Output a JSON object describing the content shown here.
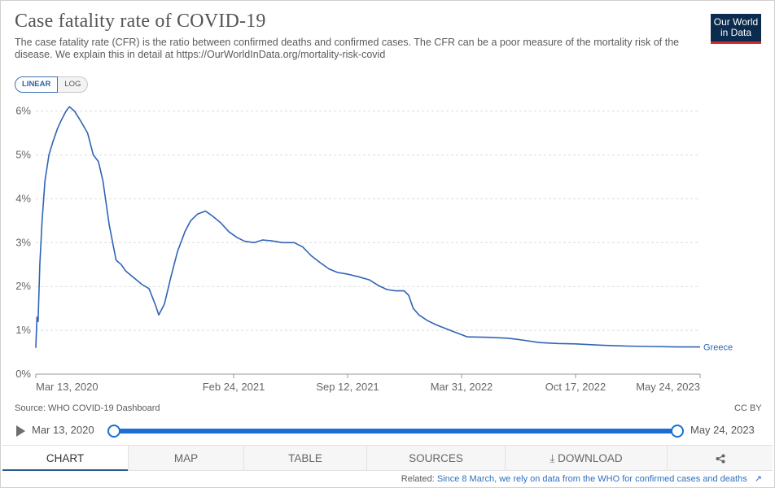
{
  "title": "Case fatality rate of COVID-19",
  "subtitle": "The case fatality rate (CFR) is the ratio between confirmed deaths and confirmed cases. The CFR can be a poor measure of the mortality risk of the disease. We explain this in detail at https://OurWorldInData.org/mortality-risk-covid",
  "logo": {
    "line1": "Our World",
    "line2": "in Data"
  },
  "scale_toggle": {
    "linear": "LINEAR",
    "log": "LOG",
    "selected": "LINEAR"
  },
  "source": "Source: WHO COVID-19 Dashboard",
  "license": "CC BY",
  "timeline": {
    "start": "Mar 13, 2020",
    "end": "May 24, 2023"
  },
  "tabs": [
    "CHART",
    "MAP",
    "TABLE",
    "SOURCES",
    "DOWNLOAD",
    ""
  ],
  "active_tab": "CHART",
  "related": {
    "prefix": "Related:",
    "link": "Since 8 March, we rely on data from the WHO for confirmed cases and deaths"
  },
  "colors": {
    "series": "#2f64b5",
    "timeline": "#1a6fd1",
    "logo_bg": "#0b2c4f",
    "logo_accent": "#d42b2b"
  },
  "icons": {
    "download": "download-icon",
    "share": "share-icon",
    "play": "play-icon",
    "external": "external-link-icon"
  },
  "chart_data": {
    "type": "line",
    "title": "Case fatality rate of COVID-19",
    "xlabel": "",
    "ylabel": "",
    "x_ticks": [
      "Mar 13, 2020",
      "Feb 24, 2021",
      "Sep 12, 2021",
      "Mar 31, 2022",
      "Oct 17, 2022",
      "May 24, 2023"
    ],
    "y_ticks": [
      "0%",
      "1%",
      "2%",
      "3%",
      "4%",
      "5%",
      "6%"
    ],
    "ylim": [
      0,
      6.2
    ],
    "xlim": [
      "2020-03-13",
      "2023-05-24"
    ],
    "grid": true,
    "series": [
      {
        "name": "Greece",
        "points": [
          [
            "2020-03-13",
            0.6
          ],
          [
            "2020-03-15",
            1.3
          ],
          [
            "2020-03-17",
            1.2
          ],
          [
            "2020-03-20",
            2.5
          ],
          [
            "2020-03-24",
            3.5
          ],
          [
            "2020-03-29",
            4.4
          ],
          [
            "2020-04-05",
            5.0
          ],
          [
            "2020-04-12",
            5.3
          ],
          [
            "2020-04-20",
            5.6
          ],
          [
            "2020-04-27",
            5.8
          ],
          [
            "2020-05-05",
            6.0
          ],
          [
            "2020-05-11",
            6.1
          ],
          [
            "2020-05-20",
            6.0
          ],
          [
            "2020-06-01",
            5.75
          ],
          [
            "2020-06-12",
            5.5
          ],
          [
            "2020-06-22",
            5.0
          ],
          [
            "2020-07-01",
            4.85
          ],
          [
            "2020-07-09",
            4.4
          ],
          [
            "2020-07-20",
            3.4
          ],
          [
            "2020-08-01",
            2.6
          ],
          [
            "2020-08-10",
            2.5
          ],
          [
            "2020-08-18",
            2.35
          ],
          [
            "2020-09-01",
            2.2
          ],
          [
            "2020-09-15",
            2.05
          ],
          [
            "2020-09-28",
            1.95
          ],
          [
            "2020-10-10",
            1.55
          ],
          [
            "2020-10-15",
            1.35
          ],
          [
            "2020-10-25",
            1.6
          ],
          [
            "2020-11-05",
            2.2
          ],
          [
            "2020-11-17",
            2.8
          ],
          [
            "2020-11-30",
            3.25
          ],
          [
            "2020-12-10",
            3.5
          ],
          [
            "2020-12-22",
            3.65
          ],
          [
            "2021-01-05",
            3.72
          ],
          [
            "2021-01-18",
            3.6
          ],
          [
            "2021-02-01",
            3.45
          ],
          [
            "2021-02-15",
            3.25
          ],
          [
            "2021-03-01",
            3.12
          ],
          [
            "2021-03-15",
            3.03
          ],
          [
            "2021-04-01",
            3.0
          ],
          [
            "2021-04-15",
            3.06
          ],
          [
            "2021-05-01",
            3.04
          ],
          [
            "2021-05-20",
            3.0
          ],
          [
            "2021-06-10",
            3.0
          ],
          [
            "2021-06-25",
            2.9
          ],
          [
            "2021-07-10",
            2.7
          ],
          [
            "2021-07-25",
            2.55
          ],
          [
            "2021-08-10",
            2.4
          ],
          [
            "2021-08-25",
            2.32
          ],
          [
            "2021-09-12",
            2.28
          ],
          [
            "2021-10-01",
            2.22
          ],
          [
            "2021-10-20",
            2.15
          ],
          [
            "2021-11-05",
            2.02
          ],
          [
            "2021-11-20",
            1.93
          ],
          [
            "2021-12-05",
            1.9
          ],
          [
            "2021-12-20",
            1.9
          ],
          [
            "2021-12-28",
            1.8
          ],
          [
            "2022-01-05",
            1.5
          ],
          [
            "2022-01-15",
            1.35
          ],
          [
            "2022-01-30",
            1.22
          ],
          [
            "2022-02-15",
            1.12
          ],
          [
            "2022-03-01",
            1.05
          ],
          [
            "2022-03-15",
            0.98
          ],
          [
            "2022-03-31",
            0.9
          ],
          [
            "2022-04-10",
            0.85
          ],
          [
            "2022-05-15",
            0.84
          ],
          [
            "2022-06-20",
            0.82
          ],
          [
            "2022-07-15",
            0.78
          ],
          [
            "2022-08-15",
            0.72
          ],
          [
            "2022-09-15",
            0.7
          ],
          [
            "2022-10-17",
            0.69
          ],
          [
            "2022-12-01",
            0.66
          ],
          [
            "2023-01-15",
            0.64
          ],
          [
            "2023-03-01",
            0.63
          ],
          [
            "2023-04-15",
            0.62
          ],
          [
            "2023-05-24",
            0.62
          ]
        ]
      }
    ]
  }
}
